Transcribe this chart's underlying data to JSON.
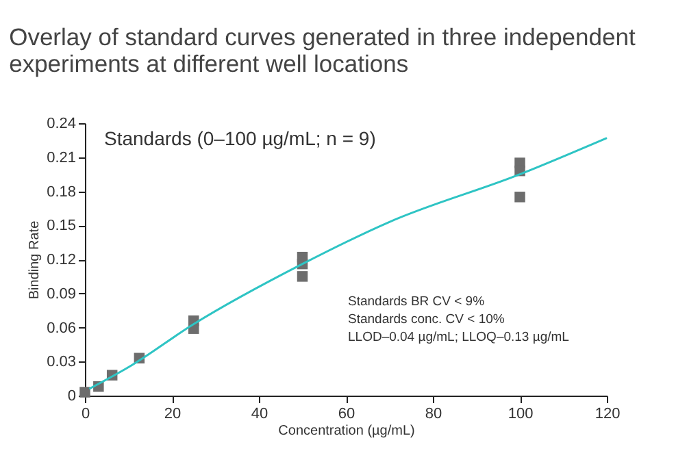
{
  "chart_data": {
    "type": "scatter",
    "title": [
      "Overlay of standard curves generated in three independent",
      "experiments at different well locations"
    ],
    "xlabel": "Concentration (µg/mL)",
    "ylabel": "Binding Rate",
    "xlim": [
      0,
      120
    ],
    "xticks": [
      0,
      20,
      40,
      60,
      80,
      100,
      120
    ],
    "ylim": [
      0,
      0.24
    ],
    "yticks": [
      0,
      0.03,
      0.06,
      0.09,
      0.12,
      0.15,
      0.18,
      0.21,
      0.24
    ],
    "grid": false,
    "legend": false,
    "annotations": [
      "Standards (0–100 µg/mL; n = 9)",
      "Standards BR CV        < 9%",
      "Standards conc. CV    < 10%",
      "LLOD–0.04 µg/mL; LLOQ–0.13 µg/mL"
    ],
    "series": [
      {
        "marker": "square",
        "color": "#6d6d6d",
        "x": [
          0,
          3.125,
          6.25,
          12.5,
          25,
          25,
          50,
          50,
          50,
          100,
          100,
          100
        ],
        "values": [
          0.003,
          0.008,
          0.018,
          0.033,
          0.066,
          0.059,
          0.122,
          0.116,
          0.105,
          0.205,
          0.198,
          0.175
        ]
      },
      {
        "type": "line",
        "marker": "none",
        "line_style": "solid",
        "color": "#2ec4c4",
        "x": [
          1,
          10,
          25,
          50,
          70,
          100,
          120
        ],
        "values": [
          0.006,
          0.025,
          0.063,
          0.116,
          0.153,
          0.195,
          0.227
        ]
      }
    ]
  }
}
